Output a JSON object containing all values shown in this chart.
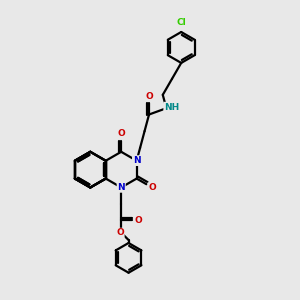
{
  "background_color": "#e8e8e8",
  "atom_colors": {
    "N": "#0000cc",
    "O": "#cc0000",
    "Cl": "#33cc00",
    "NH": "#008888"
  },
  "bond_color": "#000000",
  "bond_lw": 1.6,
  "figsize": [
    3.0,
    3.0
  ],
  "dpi": 100
}
